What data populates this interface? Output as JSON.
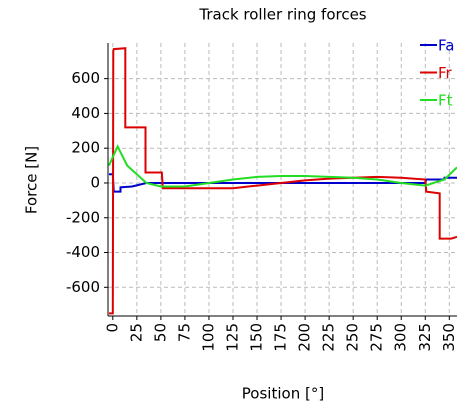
{
  "chart_data": {
    "type": "line",
    "title": "Track roller ring forces",
    "x_label": "Position [°]",
    "y_label": "Force [N]",
    "xlim": [
      -5,
      358
    ],
    "ylim": [
      -765,
      805
    ],
    "xticks": [
      0,
      25,
      50,
      75,
      100,
      125,
      150,
      175,
      200,
      225,
      250,
      275,
      300,
      325,
      350
    ],
    "yticks": [
      -600,
      -400,
      -200,
      0,
      200,
      400,
      600
    ],
    "grid": true,
    "legend": "upper right",
    "series": [
      {
        "name": "Fa",
        "color": "#0000cc",
        "x": [
          -4,
          0,
          1,
          8,
          8,
          20,
          35,
          325,
          326,
          345,
          345,
          358
        ],
        "values": [
          50,
          50,
          -50,
          -50,
          -25,
          -20,
          0,
          0,
          20,
          20,
          30,
          30
        ]
      },
      {
        "name": "Fr",
        "color": "#dd0000",
        "x": [
          -4,
          0,
          0.5,
          1,
          13,
          13,
          34,
          34,
          51,
          52,
          60,
          100,
          125,
          150,
          175,
          200,
          225,
          250,
          275,
          300,
          325,
          326,
          340,
          340,
          352,
          358
        ],
        "values": [
          -750,
          -750,
          760,
          770,
          775,
          320,
          320,
          60,
          60,
          -30,
          -30,
          -30,
          -30,
          -15,
          0,
          15,
          25,
          30,
          35,
          30,
          20,
          -50,
          -60,
          -320,
          -320,
          -310
        ]
      },
      {
        "name": "Ft",
        "color": "#22dd22",
        "x": [
          -4,
          5,
          15,
          35,
          50,
          75,
          100,
          125,
          150,
          175,
          200,
          225,
          250,
          275,
          300,
          325,
          345,
          358
        ],
        "values": [
          100,
          210,
          100,
          0,
          -20,
          -20,
          0,
          20,
          35,
          40,
          40,
          35,
          30,
          20,
          0,
          -15,
          20,
          90
        ]
      }
    ]
  }
}
